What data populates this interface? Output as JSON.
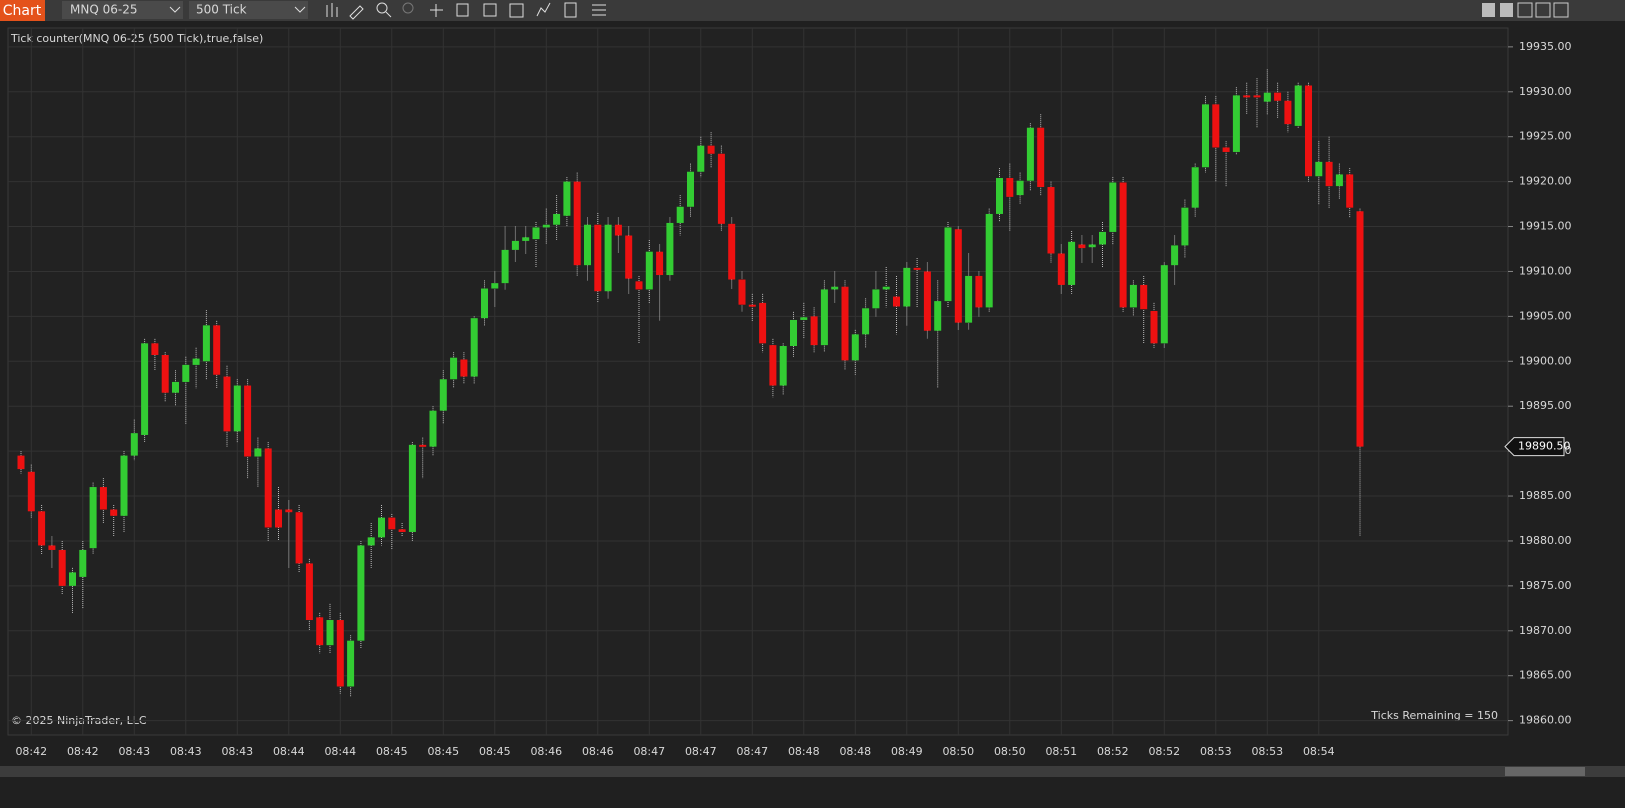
{
  "toolbar": {
    "tab": "Chart",
    "instrument": "MNQ 06-25",
    "interval": "500 Tick"
  },
  "chart_data": {
    "type": "candlestick",
    "title": "Tick counter(MNQ 06-25 (500 Tick),true,false)",
    "footer": "© 2025 NinjaTrader, LLC",
    "annotation": "Ticks Remaining = 150",
    "up_color": "#33cc33",
    "down_color": "#ee1111",
    "grid": true,
    "ylim": [
      19858.4,
      19937.1
    ],
    "yticks": [
      {
        "value": 19860,
        "label": "19860.00"
      },
      {
        "value": 19865,
        "label": "19865.00"
      },
      {
        "value": 19870,
        "label": "19870.00"
      },
      {
        "value": 19875,
        "label": "19875.00"
      },
      {
        "value": 19880,
        "label": "19880.00"
      },
      {
        "value": 19885,
        "label": "19885.00"
      },
      {
        "value": 19890,
        "label": "19890.00"
      },
      {
        "value": 19895,
        "label": "19895.00"
      },
      {
        "value": 19900,
        "label": "19900.00"
      },
      {
        "value": 19905,
        "label": "19905.00"
      },
      {
        "value": 19910,
        "label": "19910.00"
      },
      {
        "value": 19915,
        "label": "19915.00"
      },
      {
        "value": 19920,
        "label": "19920.00"
      },
      {
        "value": 19925,
        "label": "19925.00"
      },
      {
        "value": 19930,
        "label": "19930.00"
      },
      {
        "value": 19935,
        "label": "19935.00"
      }
    ],
    "last_price": {
      "value": 19890.5,
      "label": "19890.50"
    },
    "categories": [
      null,
      "08:42",
      null,
      null,
      null,
      null,
      "08:42",
      null,
      null,
      null,
      null,
      "08:43",
      null,
      null,
      null,
      null,
      "08:43",
      null,
      null,
      null,
      null,
      "08:43",
      null,
      null,
      null,
      null,
      "08:44",
      null,
      null,
      null,
      null,
      "08:44",
      null,
      null,
      null,
      null,
      "08:45",
      null,
      null,
      null,
      null,
      "08:45",
      null,
      null,
      null,
      null,
      "08:45",
      null,
      null,
      null,
      null,
      "08:46",
      null,
      null,
      null,
      null,
      "08:46",
      null,
      null,
      null,
      null,
      "08:47",
      null,
      null,
      null,
      null,
      "08:47",
      null,
      null,
      null,
      null,
      "08:47",
      null,
      null,
      null,
      null,
      "08:48",
      null,
      null,
      null,
      null,
      "08:48",
      null,
      null,
      null,
      null,
      "08:49",
      null,
      null,
      null,
      null,
      "08:50",
      null,
      null,
      null,
      null,
      "08:50",
      null,
      null,
      null,
      null,
      "08:51",
      null,
      null,
      null,
      null,
      "08:52",
      null,
      null,
      null,
      null,
      "08:52",
      null,
      null,
      null,
      null,
      "08:53",
      null,
      null,
      null,
      null,
      "08:53",
      null,
      null,
      null,
      null,
      "08:54",
      null,
      null,
      null,
      null
    ],
    "open": [
      19889.5,
      19887.7,
      19883.3,
      19879.5,
      19879,
      19875,
      19876,
      19879.2,
      19886,
      19883.5,
      19882.8,
      19889.5,
      19891.8,
      19902,
      19900.7,
      19896.5,
      19897.7,
      19899.6,
      19900,
      19904,
      19898.3,
      19892.2,
      19897.3,
      19889.4,
      19890.3,
      19883.5,
      19883.5,
      19883.2,
      19877.5,
      19871.5,
      19868.4,
      19871.2,
      19863.8,
      19868.9,
      19879.5,
      19880.4,
      19882.6,
      19881.3,
      19881,
      19890.7,
      19890.5,
      19894.5,
      19898,
      19900.2,
      19898.3,
      19904.8,
      19908.1,
      19908.7,
      19912.4,
      19913.4,
      19913.6,
      19914.9,
      19915.2,
      19916.2,
      19920,
      19910.7,
      19915.2,
      19907.8,
      19915.2,
      19914,
      19908.9,
      19908,
      19912.2,
      19909.6,
      19915.4,
      19917.2,
      19921.1,
      19924,
      19923.1,
      19915.3,
      19909.1,
      19906.3,
      19906.5,
      19901.8,
      19897.3,
      19901.7,
      19904.6,
      19905,
      19901.8,
      19908,
      19908.3,
      19900.1,
      19903,
      19905.9,
      19908,
      19907.2,
      19906.1,
      19910.4,
      19910,
      19903.4,
      19906.7,
      19914.7,
      19904.3,
      19909.5,
      19906,
      19916.4,
      19920.4,
      19918.5,
      19920.1,
      19926,
      19919.4,
      19912,
      19908.5,
      19913,
      19912.7,
      19913,
      19914.4,
      19919.9,
      19906,
      19908.5,
      19905.6,
      19902,
      19910.7,
      19912.9,
      19917.1,
      19921.6,
      19928.6,
      19923.8,
      19923.3,
      19929.6,
      19929.6,
      19928.9,
      19929.9,
      19929,
      19926.2,
      19930.7,
      19920.6,
      19922.2,
      19919.5,
      19920.8,
      19916.7
    ],
    "high": [
      19890,
      19888.5,
      19884,
      19880.5,
      19880,
      19877,
      19880,
      19886.5,
      19887,
      19884,
      19890,
      19893.5,
      19902.5,
      19902.5,
      19901,
      19899,
      19900.5,
      19901.5,
      19905.7,
      19904.5,
      19899.5,
      19898,
      19898,
      19891.5,
      19891,
      19886,
      19884.5,
      19884,
      19878,
      19872,
      19873,
      19872,
      19869.5,
      19880,
      19882,
      19884,
      19883,
      19882,
      19891,
      19891.5,
      19895,
      19899,
      19901,
      19901,
      19905,
      19909,
      19910,
      19915,
      19915,
      19915,
      19915.5,
      19917,
      19918.5,
      19920.5,
      19921,
      19916,
      19916.5,
      19916,
      19916,
      19915,
      19909.5,
      19913.5,
      19913,
      19916,
      19918.5,
      19922,
      19925,
      19925.5,
      19924,
      19916,
      19910,
      19907.5,
      19907.5,
      19902.5,
      19902,
      19905.5,
      19906.5,
      19906,
      19909,
      19910,
      19909,
      19903.5,
      19907,
      19910,
      19910.5,
      19909.5,
      19911,
      19911.5,
      19911,
      19909,
      19915.5,
      19915,
      19912,
      19910,
      19917,
      19921.5,
      19922,
      19921,
      19926.5,
      19927.5,
      19920,
      19913,
      19914.5,
      19914,
      19914,
      19915.5,
      19920.5,
      19920.5,
      19909,
      19909.5,
      19906.5,
      19911,
      19914,
      19918,
      19922,
      19929.5,
      19929.5,
      19924.5,
      19930.5,
      19931,
      19931.5,
      19932.5,
      19931,
      19930,
      19931,
      19931,
      19924.5,
      19925,
      19922,
      19921.5,
      19917
    ],
    "low": [
      19887.5,
      19882.5,
      19878.5,
      19877,
      19874,
      19872,
      19872.5,
      19878.5,
      19882,
      19880.5,
      19881,
      19889,
      19891,
      19899,
      19895.5,
      19895,
      19893,
      19897,
      19898,
      19897,
      19890.5,
      19891,
      19887,
      19886,
      19880,
      19880,
      19877,
      19876.5,
      19870,
      19867.5,
      19867.5,
      19863,
      19862.7,
      19868,
      19877,
      19879.5,
      19879,
      19880.5,
      19880,
      19887,
      19889.5,
      19893,
      19897,
      19897.5,
      19897.5,
      19904,
      19906,
      19908,
      19911,
      19912,
      19910.5,
      19913,
      19913.5,
      19915,
      19909.5,
      19909,
      19906.5,
      19907,
      19912,
      19907.5,
      19902,
      19906.5,
      19904.5,
      19909,
      19914,
      19916,
      19920.5,
      19921.5,
      19914.5,
      19908,
      19905.5,
      19904.5,
      19901,
      19896,
      19896.3,
      19900.5,
      19902.5,
      19901,
      19901,
      19906.5,
      19899,
      19898.5,
      19901.5,
      19905,
      19906,
      19903,
      19904,
      19906,
      19902.5,
      19897,
      19906,
      19903.5,
      19903.5,
      19905,
      19905.5,
      19915.5,
      19914.5,
      19917.5,
      19919,
      19918.5,
      19911,
      19907.5,
      19907.5,
      19911,
      19911,
      19910.5,
      19913,
      19905.5,
      19905,
      19902,
      19901.5,
      19901.5,
      19908.5,
      19911.5,
      19916,
      19921,
      19920,
      19919.5,
      19923,
      19927.5,
      19926,
      19927.5,
      19927,
      19925.5,
      19926,
      19920,
      19917.5,
      19917,
      19918,
      19916,
      19880.5
    ],
    "close": [
      19888,
      19883.3,
      19879.5,
      19879,
      19875,
      19876.5,
      19879,
      19886,
      19883.5,
      19882.8,
      19889.5,
      19892,
      19902,
      19900.7,
      19896.5,
      19897.7,
      19899.6,
      19900.3,
      19904,
      19898.5,
      19892.2,
      19897.3,
      19889.4,
      19890.3,
      19881.5,
      19881.5,
      19883.2,
      19877.5,
      19871.2,
      19868.4,
      19871.2,
      19863.8,
      19868.9,
      19879.5,
      19880.4,
      19882.6,
      19881.3,
      19881,
      19890.7,
      19890.5,
      19894.5,
      19898,
      19900.4,
      19898.3,
      19904.8,
      19908.1,
      19908.7,
      19912.4,
      19913.4,
      19913.8,
      19914.9,
      19915.2,
      19916.4,
      19920,
      19910.7,
      19915.2,
      19907.8,
      19915.2,
      19914,
      19909.2,
      19908,
      19912.2,
      19909.6,
      19915.4,
      19917.2,
      19921.1,
      19924,
      19923.1,
      19915.3,
      19909.1,
      19906.3,
      19906.2,
      19902,
      19897.3,
      19901.7,
      19904.6,
      19904.9,
      19901.8,
      19908,
      19908.3,
      19900.1,
      19903,
      19905.9,
      19908,
      19908.3,
      19906.1,
      19910.4,
      19910.2,
      19903.4,
      19906.7,
      19914.9,
      19904.3,
      19909.5,
      19906,
      19916.4,
      19920.4,
      19918.3,
      19920.1,
      19926,
      19919.4,
      19912,
      19908.5,
      19913.3,
      19912.6,
      19913,
      19914.4,
      19919.9,
      19906,
      19908.5,
      19905.8,
      19902,
      19910.7,
      19912.9,
      19917.1,
      19921.6,
      19928.6,
      19923.8,
      19923.3,
      19929.6,
      19929.4,
      19929.4,
      19929.9,
      19929,
      19926.4,
      19930.7,
      19920.6,
      19922.2,
      19919.5,
      19920.8,
      19917.1,
      19890.5
    ]
  }
}
